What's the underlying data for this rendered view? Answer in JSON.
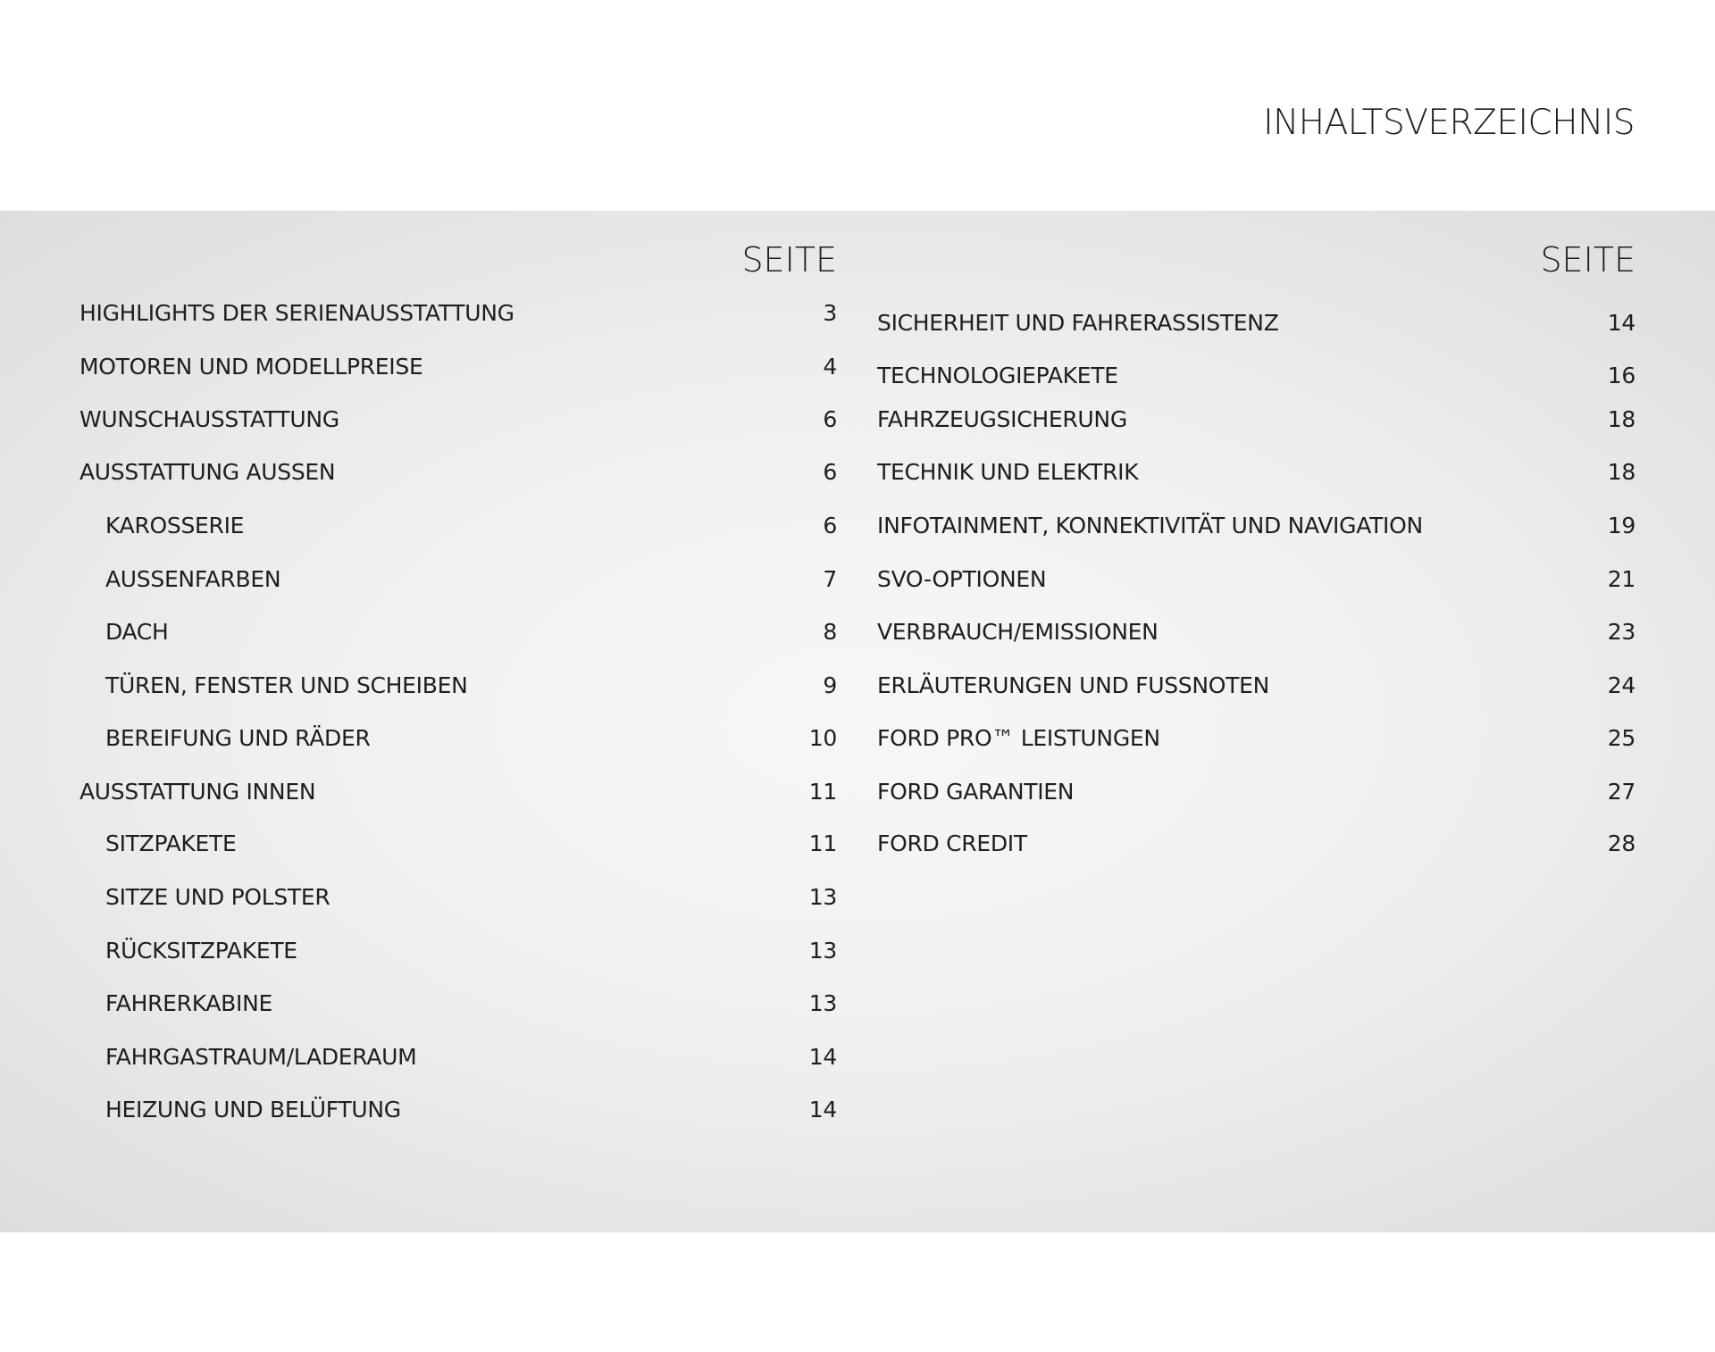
{
  "title": "INHALTSVERZEICHNIS",
  "left": {
    "header": "SEITE",
    "items": [
      {
        "label": "HIGHLIGHTS DER SERIENAUSSTATTUNG",
        "page": "3",
        "indent": false
      },
      {
        "label": "MOTOREN UND MODELLPREISE",
        "page": "4",
        "indent": false
      },
      {
        "label": "WUNSCHAUSSTATTUNG",
        "page": "6",
        "indent": false
      },
      {
        "label": "AUSSTATTUNG AUSSEN",
        "page": "6",
        "indent": false
      },
      {
        "label": "KAROSSERIE",
        "page": "6",
        "indent": true
      },
      {
        "label": "AUSSENFARBEN",
        "page": "7",
        "indent": true
      },
      {
        "label": "DACH",
        "page": "8",
        "indent": true
      },
      {
        "label": "TÜREN, FENSTER UND SCHEIBEN",
        "page": "9",
        "indent": true
      },
      {
        "label": "BEREIFUNG UND RÄDER",
        "page": "10",
        "indent": true
      },
      {
        "label": "AUSSTATTUNG INNEN",
        "page": "11",
        "indent": false
      },
      {
        "label": "SITZPAKETE",
        "page": "11",
        "indent": true
      },
      {
        "label": "SITZE UND POLSTER",
        "page": "13",
        "indent": true
      },
      {
        "label": "RÜCKSITZPAKETE",
        "page": "13",
        "indent": true
      },
      {
        "label": "FAHRERKABINE",
        "page": "13",
        "indent": true
      },
      {
        "label": "FAHRGASTRAUM/LADERAUM",
        "page": "14",
        "indent": true
      },
      {
        "label": "HEIZUNG UND BELÜFTUNG",
        "page": "14",
        "indent": true
      }
    ]
  },
  "right": {
    "header": "SEITE",
    "items": [
      {
        "label": "SICHERHEIT UND FAHRERASSISTENZ",
        "page": "14"
      },
      {
        "label": "TECHNOLOGIEPAKETE",
        "page": "16"
      },
      {
        "label": "FAHRZEUGSICHERUNG",
        "page": "18"
      },
      {
        "label": "TECHNIK UND ELEKTRIK",
        "page": "18"
      },
      {
        "label": "INFOTAINMENT, KONNEKTIVITÄT UND NAVIGATION",
        "page": "19"
      },
      {
        "label": "SVO-OPTIONEN",
        "page": "21"
      },
      {
        "label": "VERBRAUCH/EMISSIONEN",
        "page": "23"
      },
      {
        "label": "ERLÄUTERUNGEN UND FUSSNOTEN",
        "page": "24"
      },
      {
        "label": "FORD PRO™ LEISTUNGEN",
        "page": "25"
      },
      {
        "label": "FORD GARANTIEN",
        "page": "27"
      },
      {
        "label": "FORD CREDIT",
        "page": "28"
      }
    ]
  }
}
